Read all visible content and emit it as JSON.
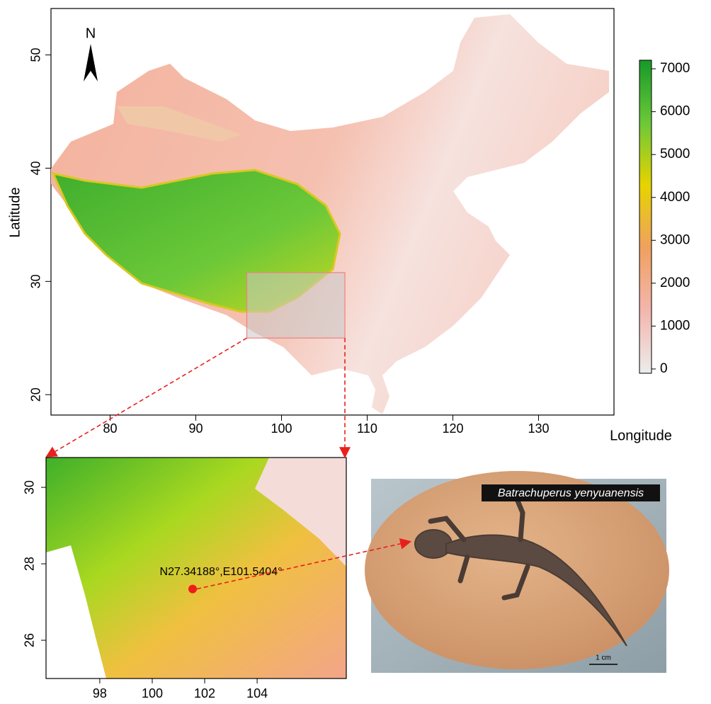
{
  "main_map": {
    "north_label": "N",
    "xlabel": "Longitude",
    "ylabel": "Latitude",
    "xlim": [
      73.1,
      138.8
    ],
    "ylim": [
      18.2,
      54.1
    ],
    "xticks": [
      80,
      90,
      100,
      110,
      120,
      130
    ],
    "yticks": [
      20,
      30,
      40,
      50
    ]
  },
  "colorbar": {
    "lim": [
      -100,
      7200
    ],
    "ticks": [
      0,
      1000,
      2000,
      3000,
      4000,
      5000,
      6000,
      7000
    ],
    "colors": [
      "#ececec",
      "#f3b6ad",
      "#f0a060",
      "#e6d400",
      "#6cc838",
      "#169a28"
    ]
  },
  "inset_map": {
    "xlim": [
      95.95,
      107.4
    ],
    "ylim": [
      25.0,
      30.78
    ],
    "xticks": [
      98,
      100,
      102,
      104
    ],
    "yticks": [
      26,
      28,
      30
    ],
    "point": {
      "label": "N27.34188°,E101.5404°",
      "lat": 27.34188,
      "lon": 101.5404
    }
  },
  "photo": {
    "caption": "Batrachuperus yenyuanensis",
    "scale_label": "1 cm"
  }
}
